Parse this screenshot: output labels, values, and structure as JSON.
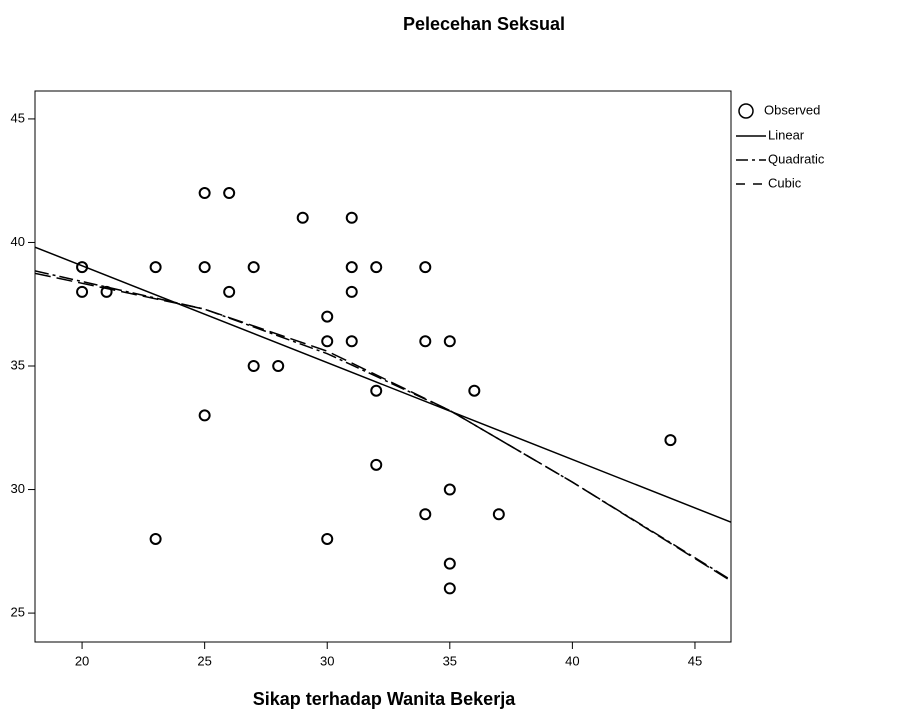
{
  "chart_data": {
    "type": "scatter",
    "title": "Pelecehan Seksual",
    "x_label": "Sikap terhadap Wanita Bekerja",
    "xlim": [
      18.08,
      46.47
    ],
    "xticks": [
      20,
      25,
      30,
      35,
      40,
      45
    ],
    "ylim": [
      23.83,
      46.13
    ],
    "yticks": [
      25,
      30,
      35,
      40,
      45
    ],
    "legend": "right",
    "observed": {
      "name": "Observed",
      "color": "#000000",
      "x": [
        20,
        20,
        21,
        23,
        23,
        25,
        25,
        25,
        26,
        26,
        27,
        27,
        28,
        29,
        30,
        30,
        30,
        31,
        31,
        31,
        31,
        32,
        32,
        32,
        34,
        34,
        34,
        35,
        35,
        35,
        35,
        36,
        37,
        44
      ],
      "values": [
        39,
        38,
        38,
        39,
        28,
        42,
        39,
        33,
        42,
        38,
        39,
        35,
        35,
        41,
        37,
        36,
        28,
        41,
        39,
        38,
        36,
        39,
        34,
        31,
        39,
        36,
        29,
        36,
        30,
        27,
        26,
        34,
        29,
        32
      ]
    },
    "series": [
      {
        "name": "Linear",
        "color": "#000000",
        "dash": "solid",
        "x": [
          18.08,
          46.47
        ],
        "values": [
          39.81,
          28.68
        ]
      },
      {
        "name": "Quadratic",
        "color": "#000000",
        "dash": "dashdot",
        "x": [
          18.08,
          25,
          30,
          35,
          40,
          46.47
        ],
        "values": [
          38.85,
          37.3,
          35.5,
          33.2,
          30.3,
          26.34
        ]
      },
      {
        "name": "Cubic",
        "color": "#000000",
        "dash": "dash",
        "x": [
          18.08,
          25,
          30,
          35,
          40,
          46.47
        ],
        "values": [
          38.75,
          37.3,
          35.6,
          33.2,
          30.3,
          26.3
        ]
      }
    ]
  }
}
